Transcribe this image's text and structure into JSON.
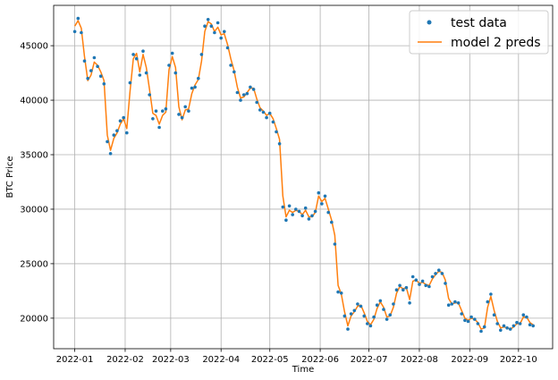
{
  "chart_data": {
    "type": "line",
    "title": "",
    "xlabel": "Time",
    "ylabel": "BTC Price",
    "xlim": [
      "2021-12-19",
      "2022-10-22"
    ],
    "ylim": [
      17200,
      48700
    ],
    "x_ticks": [
      "2022-01",
      "2022-02",
      "2022-03",
      "2022-04",
      "2022-05",
      "2022-06",
      "2022-07",
      "2022-08",
      "2022-09",
      "2022-10"
    ],
    "y_ticks": [
      20000,
      25000,
      30000,
      35000,
      40000,
      45000
    ],
    "grid": true,
    "legend_position": "top-right",
    "series": [
      {
        "name": "test data",
        "style": "markers",
        "color": "#1f77b4",
        "x": [
          "2022-01-01",
          "2022-01-03",
          "2022-01-05",
          "2022-01-07",
          "2022-01-09",
          "2022-01-11",
          "2022-01-13",
          "2022-01-15",
          "2022-01-17",
          "2022-01-19",
          "2022-01-21",
          "2022-01-23",
          "2022-01-25",
          "2022-01-27",
          "2022-01-29",
          "2022-01-31",
          "2022-02-02",
          "2022-02-04",
          "2022-02-06",
          "2022-02-08",
          "2022-02-10",
          "2022-02-12",
          "2022-02-14",
          "2022-02-16",
          "2022-02-18",
          "2022-02-20",
          "2022-02-22",
          "2022-02-24",
          "2022-02-26",
          "2022-02-28",
          "2022-03-02",
          "2022-03-04",
          "2022-03-06",
          "2022-03-08",
          "2022-03-10",
          "2022-03-12",
          "2022-03-14",
          "2022-03-16",
          "2022-03-18",
          "2022-03-20",
          "2022-03-22",
          "2022-03-24",
          "2022-03-26",
          "2022-03-28",
          "2022-03-30",
          "2022-04-01",
          "2022-04-03",
          "2022-04-05",
          "2022-04-07",
          "2022-04-09",
          "2022-04-11",
          "2022-04-13",
          "2022-04-15",
          "2022-04-17",
          "2022-04-19",
          "2022-04-21",
          "2022-04-23",
          "2022-04-25",
          "2022-04-27",
          "2022-04-29",
          "2022-05-01",
          "2022-05-03",
          "2022-05-05",
          "2022-05-07",
          "2022-05-09",
          "2022-05-11",
          "2022-05-13",
          "2022-05-15",
          "2022-05-17",
          "2022-05-19",
          "2022-05-21",
          "2022-05-23",
          "2022-05-25",
          "2022-05-27",
          "2022-05-29",
          "2022-05-31",
          "2022-06-02",
          "2022-06-04",
          "2022-06-06",
          "2022-06-08",
          "2022-06-10",
          "2022-06-12",
          "2022-06-14",
          "2022-06-16",
          "2022-06-18",
          "2022-06-20",
          "2022-06-22",
          "2022-06-24",
          "2022-06-26",
          "2022-06-28",
          "2022-06-30",
          "2022-07-02",
          "2022-07-04",
          "2022-07-06",
          "2022-07-08",
          "2022-07-10",
          "2022-07-12",
          "2022-07-14",
          "2022-07-16",
          "2022-07-18",
          "2022-07-20",
          "2022-07-22",
          "2022-07-24",
          "2022-07-26",
          "2022-07-28",
          "2022-07-30",
          "2022-08-01",
          "2022-08-03",
          "2022-08-05",
          "2022-08-07",
          "2022-08-09",
          "2022-08-11",
          "2022-08-13",
          "2022-08-15",
          "2022-08-17",
          "2022-08-19",
          "2022-08-21",
          "2022-08-23",
          "2022-08-25",
          "2022-08-27",
          "2022-08-29",
          "2022-08-31",
          "2022-09-02",
          "2022-09-04",
          "2022-09-06",
          "2022-09-08",
          "2022-09-10",
          "2022-09-12",
          "2022-09-14",
          "2022-09-16",
          "2022-09-18",
          "2022-09-20",
          "2022-09-22",
          "2022-09-24",
          "2022-09-26",
          "2022-09-28",
          "2022-09-30",
          "2022-10-02",
          "2022-10-04",
          "2022-10-06",
          "2022-10-08",
          "2022-10-10"
        ],
        "values": [
          46300,
          47500,
          46200,
          43600,
          42000,
          42700,
          43900,
          43100,
          42200,
          41500,
          36200,
          35100,
          36800,
          37200,
          38100,
          38400,
          37000,
          41600,
          44200,
          43800,
          42300,
          44500,
          42500,
          40500,
          38300,
          39000,
          37500,
          39000,
          39200,
          43200,
          44300,
          42500,
          38700,
          38400,
          39400,
          39000,
          41100,
          41200,
          42000,
          44200,
          46800,
          47400,
          46800,
          46200,
          47100,
          45700,
          46300,
          44800,
          43200,
          42600,
          40700,
          40000,
          40500,
          40600,
          41200,
          41000,
          39800,
          39100,
          38900,
          38400,
          38800,
          38000,
          37100,
          36000,
          30200,
          29000,
          30300,
          29500,
          30000,
          29800,
          29400,
          30100,
          29100,
          29400,
          29800,
          31500,
          30500,
          31200,
          29700,
          28800,
          26800,
          22400,
          22300,
          20200,
          19000,
          20400,
          20700,
          21300,
          21100,
          20200,
          19500,
          19300,
          20100,
          21200,
          21600,
          20800,
          19900,
          20300,
          21300,
          22600,
          23000,
          22600,
          22800,
          21400,
          23800,
          23500,
          23100,
          23400,
          23000,
          22900,
          23800,
          24100,
          24400,
          24100,
          23200,
          21200,
          21300,
          21500,
          21400,
          20400,
          19800,
          19700,
          20100,
          19900,
          19500,
          18800,
          19200,
          21500,
          22200,
          20300,
          19500,
          18900,
          19300,
          19100,
          19000,
          19300,
          19600,
          19500,
          20300,
          20100,
          19400,
          19300
        ]
      },
      {
        "name": "model 2 preds",
        "style": "line",
        "color": "#ff7f0e",
        "x": [
          "2022-01-01",
          "2022-01-03",
          "2022-01-05",
          "2022-01-07",
          "2022-01-09",
          "2022-01-11",
          "2022-01-13",
          "2022-01-15",
          "2022-01-17",
          "2022-01-19",
          "2022-01-21",
          "2022-01-23",
          "2022-01-25",
          "2022-01-27",
          "2022-01-29",
          "2022-01-31",
          "2022-02-02",
          "2022-02-04",
          "2022-02-06",
          "2022-02-08",
          "2022-02-10",
          "2022-02-12",
          "2022-02-14",
          "2022-02-16",
          "2022-02-18",
          "2022-02-20",
          "2022-02-22",
          "2022-02-24",
          "2022-02-26",
          "2022-02-28",
          "2022-03-02",
          "2022-03-04",
          "2022-03-06",
          "2022-03-08",
          "2022-03-10",
          "2022-03-12",
          "2022-03-14",
          "2022-03-16",
          "2022-03-18",
          "2022-03-20",
          "2022-03-22",
          "2022-03-24",
          "2022-03-26",
          "2022-03-28",
          "2022-03-30",
          "2022-04-01",
          "2022-04-03",
          "2022-04-05",
          "2022-04-07",
          "2022-04-09",
          "2022-04-11",
          "2022-04-13",
          "2022-04-15",
          "2022-04-17",
          "2022-04-19",
          "2022-04-21",
          "2022-04-23",
          "2022-04-25",
          "2022-04-27",
          "2022-04-29",
          "2022-05-01",
          "2022-05-03",
          "2022-05-05",
          "2022-05-07",
          "2022-05-09",
          "2022-05-11",
          "2022-05-13",
          "2022-05-15",
          "2022-05-17",
          "2022-05-19",
          "2022-05-21",
          "2022-05-23",
          "2022-05-25",
          "2022-05-27",
          "2022-05-29",
          "2022-05-31",
          "2022-06-02",
          "2022-06-04",
          "2022-06-06",
          "2022-06-08",
          "2022-06-10",
          "2022-06-12",
          "2022-06-14",
          "2022-06-16",
          "2022-06-18",
          "2022-06-20",
          "2022-06-22",
          "2022-06-24",
          "2022-06-26",
          "2022-06-28",
          "2022-06-30",
          "2022-07-02",
          "2022-07-04",
          "2022-07-06",
          "2022-07-08",
          "2022-07-10",
          "2022-07-12",
          "2022-07-14",
          "2022-07-16",
          "2022-07-18",
          "2022-07-20",
          "2022-07-22",
          "2022-07-24",
          "2022-07-26",
          "2022-07-28",
          "2022-07-30",
          "2022-08-01",
          "2022-08-03",
          "2022-08-05",
          "2022-08-07",
          "2022-08-09",
          "2022-08-11",
          "2022-08-13",
          "2022-08-15",
          "2022-08-17",
          "2022-08-19",
          "2022-08-21",
          "2022-08-23",
          "2022-08-25",
          "2022-08-27",
          "2022-08-29",
          "2022-08-31",
          "2022-09-02",
          "2022-09-04",
          "2022-09-06",
          "2022-09-08",
          "2022-09-10",
          "2022-09-12",
          "2022-09-14",
          "2022-09-16",
          "2022-09-18",
          "2022-09-20",
          "2022-09-22",
          "2022-09-24",
          "2022-09-26",
          "2022-09-28",
          "2022-09-30",
          "2022-10-02",
          "2022-10-04",
          "2022-10-06",
          "2022-10-08",
          "2022-10-10"
        ],
        "values": [
          46800,
          47300,
          46600,
          44000,
          41800,
          42300,
          43500,
          43200,
          42600,
          41800,
          36800,
          35400,
          36500,
          37000,
          37800,
          38300,
          37400,
          40800,
          43800,
          44300,
          42600,
          44200,
          43000,
          41000,
          38800,
          38600,
          37800,
          38600,
          38900,
          42800,
          44000,
          43000,
          39400,
          38200,
          39100,
          39200,
          40600,
          41400,
          41900,
          43600,
          46300,
          47200,
          47000,
          46300,
          46700,
          46000,
          46100,
          45100,
          43800,
          42700,
          41200,
          40200,
          40300,
          40700,
          41100,
          41100,
          40100,
          39300,
          39000,
          38600,
          38800,
          38300,
          37400,
          36400,
          31200,
          29300,
          29900,
          29700,
          29900,
          29800,
          29500,
          29900,
          29300,
          29300,
          29700,
          31200,
          30700,
          31000,
          30000,
          29000,
          27600,
          23000,
          22200,
          20600,
          19300,
          20200,
          20600,
          21100,
          21200,
          20500,
          19700,
          19400,
          19900,
          20900,
          21500,
          21000,
          20100,
          20200,
          21000,
          22300,
          22900,
          22700,
          22800,
          21700,
          23400,
          23500,
          23200,
          23300,
          23100,
          23000,
          23600,
          24000,
          24300,
          24200,
          23500,
          21800,
          21300,
          21400,
          21400,
          20700,
          20000,
          19800,
          20000,
          19900,
          19600,
          19000,
          19100,
          21000,
          22000,
          20700,
          19700,
          19100,
          19200,
          19100,
          19000,
          19200,
          19500,
          19500,
          20100,
          20100,
          19600,
          19400
        ]
      }
    ]
  }
}
